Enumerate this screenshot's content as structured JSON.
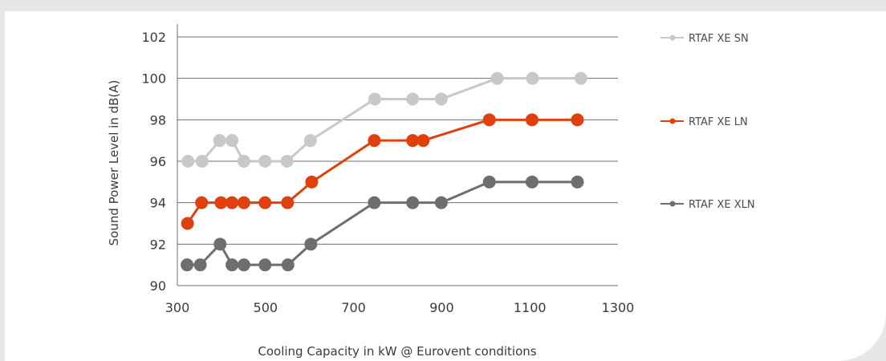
{
  "chart_data": {
    "type": "line",
    "xlabel": "Cooling Capacity in kW @ Eurovent conditions",
    "ylabel": "Sound Power Level in dB(A)",
    "xlim": [
      300,
      1300
    ],
    "ylim": [
      90,
      102
    ],
    "xticks": [
      300,
      500,
      700,
      900,
      1100,
      1300
    ],
    "yticks": [
      90,
      92,
      94,
      96,
      98,
      100,
      102
    ],
    "grid": "horizontal",
    "legend_position": "right",
    "series": [
      {
        "name": "RTAF XE SN",
        "color": "#c8c8c8",
        "points": [
          [
            324,
            96
          ],
          [
            356,
            96
          ],
          [
            396,
            97
          ],
          [
            424,
            97
          ],
          [
            451,
            96
          ],
          [
            499,
            96
          ],
          [
            549,
            96
          ],
          [
            602,
            97
          ],
          [
            748,
            99
          ],
          [
            834,
            99
          ],
          [
            899,
            99
          ],
          [
            1026,
            100
          ],
          [
            1106,
            100
          ],
          [
            1216,
            100
          ]
        ]
      },
      {
        "name": "RTAF XE LN",
        "color": "#e0400e",
        "points": [
          [
            323,
            93
          ],
          [
            355,
            94
          ],
          [
            399,
            94
          ],
          [
            424,
            94
          ],
          [
            451,
            94
          ],
          [
            499,
            94
          ],
          [
            550,
            94
          ],
          [
            605,
            95
          ],
          [
            747,
            97
          ],
          [
            834,
            97
          ],
          [
            858,
            97
          ],
          [
            1008,
            98
          ],
          [
            1105,
            98
          ],
          [
            1208,
            98
          ]
        ]
      },
      {
        "name": "RTAF XE XLN",
        "color": "#6d6e70",
        "points": [
          [
            322,
            91
          ],
          [
            352,
            91
          ],
          [
            397,
            92
          ],
          [
            424,
            91
          ],
          [
            451,
            91
          ],
          [
            499,
            91
          ],
          [
            551,
            91
          ],
          [
            603,
            92
          ],
          [
            747,
            94
          ],
          [
            834,
            94
          ],
          [
            899,
            94
          ],
          [
            1008,
            95
          ],
          [
            1105,
            95
          ],
          [
            1208,
            95
          ]
        ]
      }
    ]
  }
}
